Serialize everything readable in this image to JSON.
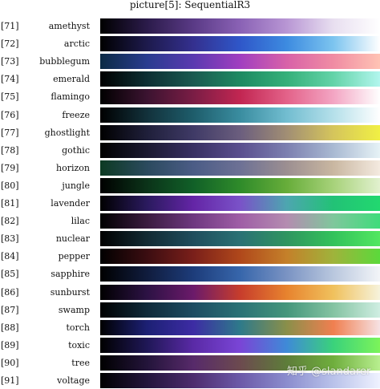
{
  "title": "picture[5]: SequentialR3",
  "colormaps": [
    {
      "index": "[71]",
      "name": "amethyst",
      "colors": [
        "#000000",
        "#2b1b4a",
        "#5a3a86",
        "#8a62b5",
        "#b896d4",
        "#e8dff0",
        "#ffffff"
      ]
    },
    {
      "index": "[72]",
      "name": "arctic",
      "colors": [
        "#000000",
        "#1d1a4c",
        "#34308f",
        "#2f57c9",
        "#3d8be0",
        "#7cc4ef",
        "#ffffff"
      ]
    },
    {
      "index": "[73]",
      "name": "bubblegum",
      "colors": [
        "#0b2a44",
        "#293c8f",
        "#5a3ab0",
        "#a13ec0",
        "#d862a8",
        "#f08ca3",
        "#ffc3b4"
      ]
    },
    {
      "index": "[74]",
      "name": "emerald",
      "colors": [
        "#000000",
        "#0d2f33",
        "#1a5a50",
        "#1e8a62",
        "#35b07a",
        "#63d3a8",
        "#b2f6ee"
      ]
    },
    {
      "index": "[75]",
      "name": "flamingo",
      "colors": [
        "#000000",
        "#3b1330",
        "#7a1d45",
        "#c22652",
        "#e36289",
        "#f3a5c3",
        "#ffffff"
      ]
    },
    {
      "index": "[76]",
      "name": "freeze",
      "colors": [
        "#000000",
        "#12313b",
        "#1e5d6b",
        "#3a8da0",
        "#72bdd0",
        "#b5e0ea",
        "#ffffff"
      ]
    },
    {
      "index": "[77]",
      "name": "ghostlight",
      "colors": [
        "#000000",
        "#1f1f3a",
        "#3f3a66",
        "#6b5e7e",
        "#a18e74",
        "#d5c55c",
        "#f1f044"
      ]
    },
    {
      "index": "[78]",
      "name": "gothic",
      "colors": [
        "#000000",
        "#1b1930",
        "#383063",
        "#5a4f8e",
        "#7c7fb0",
        "#a9b9d2",
        "#e6f2f6"
      ]
    },
    {
      "index": "[79]",
      "name": "horizon",
      "colors": [
        "#0c3a22",
        "#2b4a5e",
        "#4b5c86",
        "#6d7195",
        "#9c8f91",
        "#c9b7a1",
        "#f4eae0"
      ]
    },
    {
      "index": "[80]",
      "name": "jungle",
      "colors": [
        "#000000",
        "#0b3319",
        "#116028",
        "#2f8b2a",
        "#67ad3a",
        "#a7d27a",
        "#e2f1cf"
      ]
    },
    {
      "index": "[81]",
      "name": "lavender",
      "colors": [
        "#000000",
        "#2a1a5e",
        "#6425a6",
        "#7a52c8",
        "#4da6b0",
        "#22c276",
        "#22d86f"
      ]
    },
    {
      "index": "[82]",
      "name": "lilac",
      "colors": [
        "#000000",
        "#3a1b3f",
        "#6e3880",
        "#9f5ea6",
        "#b48cb0",
        "#7fc79c",
        "#3fdc7b"
      ]
    },
    {
      "index": "[83]",
      "name": "nuclear",
      "colors": [
        "#000000",
        "#122a33",
        "#1f4d5d",
        "#2a7174",
        "#2f9560",
        "#33c25b",
        "#52e760"
      ]
    },
    {
      "index": "[84]",
      "name": "pepper",
      "colors": [
        "#000000",
        "#3b0d11",
        "#7a1f1a",
        "#b0481b",
        "#c4802a",
        "#9fb33b",
        "#5bd93b"
      ]
    },
    {
      "index": "[85]",
      "name": "sapphire",
      "colors": [
        "#000000",
        "#101c3d",
        "#1d3c7a",
        "#3766ab",
        "#7a93c3",
        "#b9c7de",
        "#f3f5f8"
      ]
    },
    {
      "index": "[86]",
      "name": "sunburst",
      "colors": [
        "#000000",
        "#2c1244",
        "#6b1a6a",
        "#c73d2c",
        "#e7832e",
        "#f0c15d",
        "#f6f3dc"
      ]
    },
    {
      "index": "[87]",
      "name": "swamp",
      "colors": [
        "#000000",
        "#0f2a3a",
        "#1d4d62",
        "#2a7276",
        "#45967b",
        "#84c3a2",
        "#cfeee2"
      ]
    },
    {
      "index": "[88]",
      "name": "torch",
      "colors": [
        "#000000",
        "#1c2074",
        "#3d2ca4",
        "#2e7a8a",
        "#8a8f4a",
        "#f07f50",
        "#f6e2e4"
      ]
    },
    {
      "index": "[89]",
      "name": "toxic",
      "colors": [
        "#000000",
        "#1f1756",
        "#5a2aa6",
        "#7a45d6",
        "#3f8ad7",
        "#3ad27b",
        "#7cf45a"
      ]
    },
    {
      "index": "[90]",
      "name": "tree",
      "colors": [
        "#000000",
        "#23143a",
        "#572a6a",
        "#6c4a4f",
        "#5e7d3a",
        "#6fae3d",
        "#b8ef8f"
      ]
    },
    {
      "index": "[91]",
      "name": "voltage",
      "colors": [
        "#000000",
        "#22153b",
        "#4d2c6e",
        "#6c5aa8",
        "#8b8dce",
        "#b9c2ea",
        "#eff2ff"
      ]
    }
  ],
  "watermark": "知乎 @slandarer"
}
